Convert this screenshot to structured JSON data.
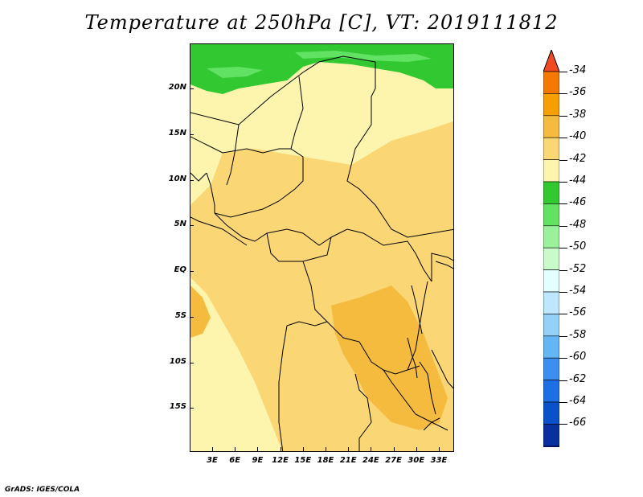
{
  "title": "Temperature at 250hPa [C], VT: 2019111812",
  "footer": "GrADS: IGES/COLA",
  "map": {
    "lat_labels": [
      "20N",
      "15N",
      "10N",
      "5N",
      "EQ",
      "5S",
      "10S",
      "15S"
    ],
    "lon_labels": [
      "3E",
      "6E",
      "9E",
      "12E",
      "15E",
      "18E",
      "21E",
      "24E",
      "27E",
      "30E",
      "33E"
    ]
  },
  "colorbar": {
    "labels": [
      "-34",
      "-36",
      "-38",
      "-40",
      "-42",
      "-44",
      "-46",
      "-48",
      "-50",
      "-52",
      "-54",
      "-56",
      "-58",
      "-60",
      "-62",
      "-64",
      "-66"
    ],
    "colors": [
      "#f04a22",
      "#f57800",
      "#f5a000",
      "#f5bb3f",
      "#fad774",
      "#fdf5ad",
      "#32c832",
      "#62e262",
      "#9bf19b",
      "#c9fac9",
      "#e4ffff",
      "#bde7fc",
      "#92d1f8",
      "#64b5f6",
      "#3c8ff0",
      "#1e6ee6",
      "#0a50c8",
      "#0a30a0",
      "#0a1578",
      "#dcdcf8"
    ]
  },
  "fields": {
    "north_band": "#32c832",
    "north_band_light": "#62e262",
    "pale": "#fdf5ad",
    "light_orange": "#fad774",
    "orange": "#f5bb3f",
    "border": "#000000"
  }
}
